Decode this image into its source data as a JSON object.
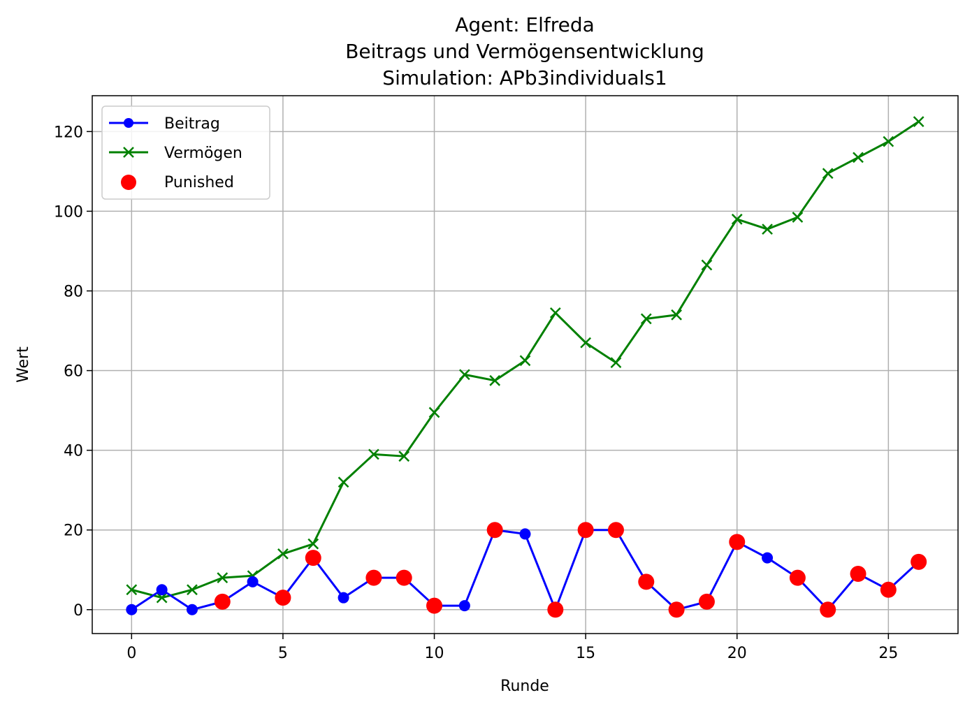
{
  "chart_data": {
    "type": "line",
    "title_lines": [
      "Agent: Elfreda",
      "Beitrags und Vermögensentwicklung",
      "Simulation: APb3individuals1"
    ],
    "xlabel": "Runde",
    "ylabel": "Wert",
    "xlim": [
      -1.3,
      27.3
    ],
    "ylim": [
      -6,
      129
    ],
    "xticks": [
      0,
      5,
      10,
      15,
      20,
      25
    ],
    "yticks": [
      0,
      20,
      40,
      60,
      80,
      100,
      120
    ],
    "grid": true,
    "legend_position": "upper-left",
    "x": [
      0,
      1,
      2,
      3,
      4,
      5,
      6,
      7,
      8,
      9,
      10,
      11,
      12,
      13,
      14,
      15,
      16,
      17,
      18,
      19,
      20,
      21,
      22,
      23,
      24,
      25,
      26
    ],
    "series": [
      {
        "name": "Beitrag",
        "color": "#0000ff",
        "marker": "circle",
        "values": [
          0,
          5,
          0,
          2,
          7,
          3,
          13,
          3,
          8,
          8,
          1,
          1,
          20,
          19,
          0,
          20,
          20,
          7,
          0,
          2,
          17,
          13,
          8,
          0,
          9,
          5,
          12
        ]
      },
      {
        "name": "Vermögen",
        "color": "#008000",
        "marker": "x",
        "values": [
          5,
          3,
          5,
          8,
          8.5,
          14,
          16.5,
          32,
          39,
          38.5,
          49.5,
          59,
          57.5,
          62.5,
          74.5,
          67,
          62,
          73,
          74,
          86.5,
          98,
          95.5,
          98.5,
          109.5,
          113.5,
          117.5,
          122.5
        ]
      }
    ],
    "punished": {
      "name": "Punished",
      "color": "#ff0000",
      "x": [
        3,
        5,
        6,
        8,
        9,
        10,
        12,
        14,
        15,
        16,
        17,
        18,
        19,
        20,
        22,
        23,
        24,
        25,
        26
      ],
      "y": [
        2,
        3,
        13,
        8,
        8,
        1,
        20,
        0,
        20,
        20,
        7,
        0,
        2,
        17,
        8,
        0,
        9,
        5,
        12
      ]
    }
  }
}
